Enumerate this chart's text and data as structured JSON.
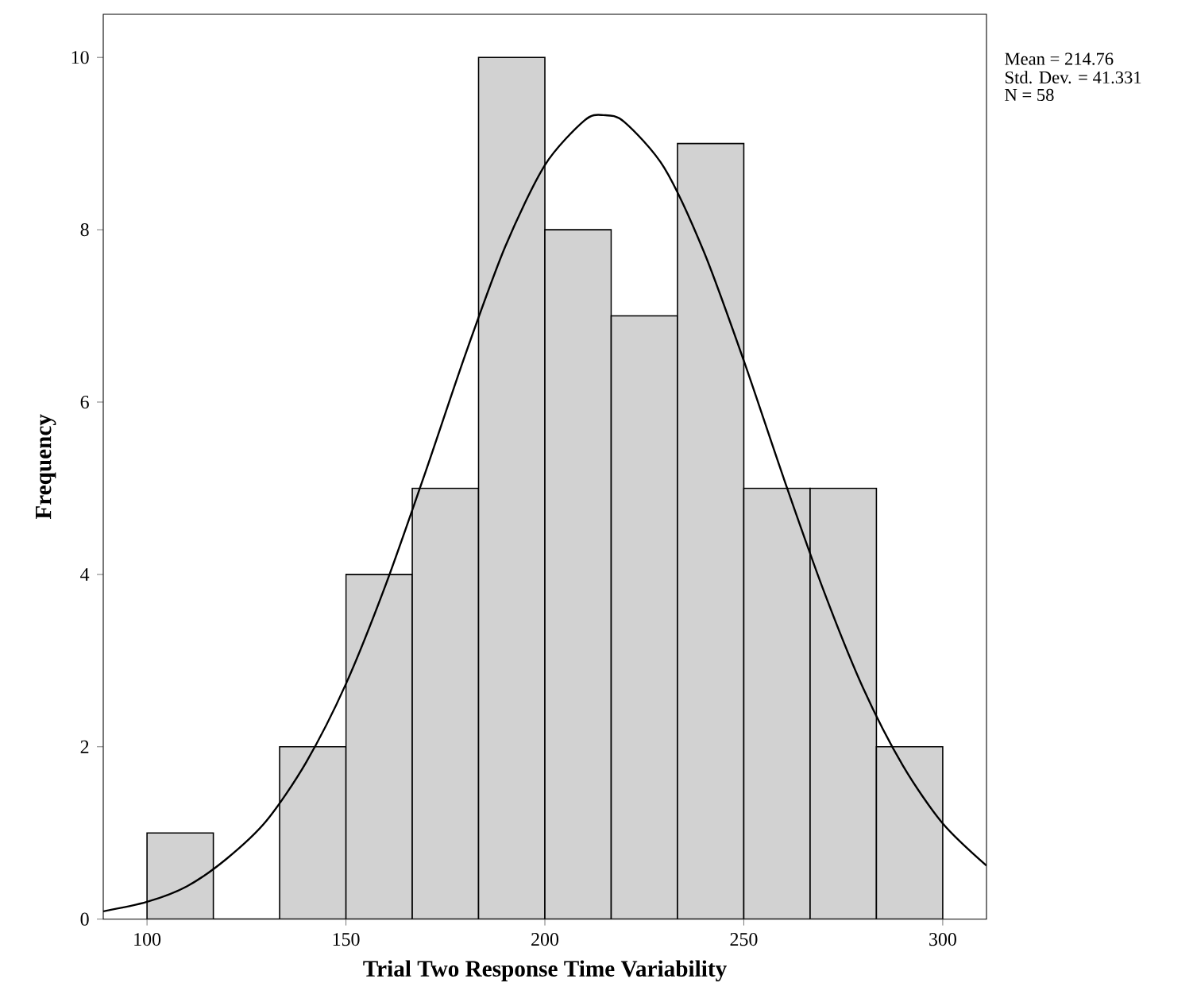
{
  "chart_data": {
    "type": "histogram",
    "xlabel": "Trial Two Response Time Variability",
    "ylabel": "Frequency",
    "bins": [
      100,
      116.67,
      133.33,
      150,
      166.67,
      183.33,
      200,
      216.67,
      233.33,
      250,
      266.67,
      283.33,
      300
    ],
    "values": [
      1,
      0,
      2,
      4,
      5,
      10,
      8,
      7,
      9,
      5,
      5,
      2
    ],
    "color": "#d2d2d2",
    "series": [
      {
        "type": "line",
        "color": "#000000",
        "x": [
          89,
          100,
          110,
          120,
          130,
          140,
          150,
          160,
          170,
          180,
          190,
          200,
          210,
          214.76,
          220,
          230,
          240,
          250,
          260,
          270,
          280,
          290,
          300,
          311
        ],
        "values": [
          0.09,
          0.2,
          0.38,
          0.7,
          1.14,
          1.82,
          2.73,
          3.88,
          5.19,
          6.55,
          7.8,
          8.75,
          9.27,
          9.33,
          9.25,
          8.72,
          7.74,
          6.48,
          5.12,
          3.82,
          2.68,
          1.78,
          1.11,
          0.62
        ]
      }
    ],
    "xlim": [
      89,
      311
    ],
    "ylim": [
      0,
      10.5
    ],
    "xticks": [
      100,
      150,
      200,
      250,
      300
    ],
    "yticks": [
      0,
      2,
      4,
      6,
      8,
      10
    ],
    "annotations": [
      "Mean = 214.76",
      "Std. Dev. = 41.331",
      "N = 58"
    ]
  }
}
